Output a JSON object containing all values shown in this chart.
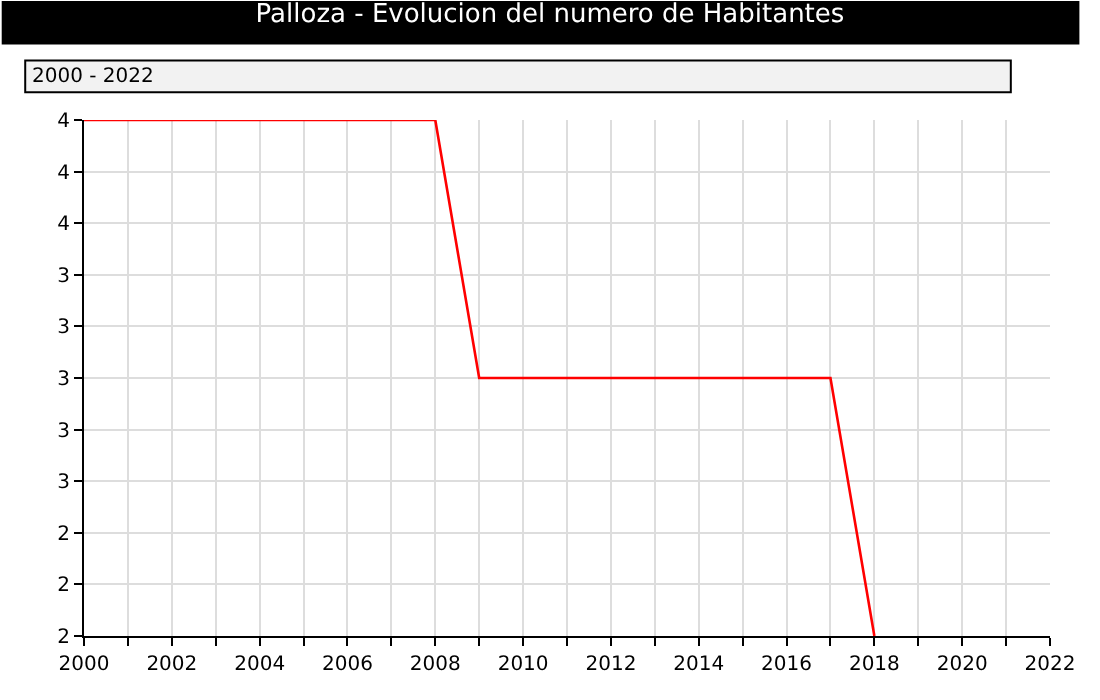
{
  "chart_data": {
    "type": "line",
    "title": "Palloza - Evolucion del numero de Habitantes",
    "annotations": [
      "2000 - 2022"
    ],
    "x": [
      2000,
      2001,
      2002,
      2003,
      2004,
      2005,
      2006,
      2007,
      2008,
      2009,
      2010,
      2011,
      2012,
      2013,
      2014,
      2015,
      2016,
      2017,
      2018
    ],
    "series": [
      {
        "color": "#ff0000",
        "values": [
          4,
          4,
          4,
          4,
          4,
          4,
          4,
          4,
          4,
          3,
          3,
          3,
          3,
          3,
          3,
          3,
          3,
          3,
          2
        ]
      }
    ],
    "xlim": [
      2000,
      2022
    ],
    "xticks": [
      2000,
      {
        "value": 2001,
        "label": null
      },
      2002,
      {
        "value": 2003,
        "label": null
      },
      2004,
      {
        "value": 2005,
        "label": null
      },
      2006,
      {
        "value": 2007,
        "label": null
      },
      2008,
      {
        "value": 2009,
        "label": null
      },
      2010,
      {
        "value": 2011,
        "label": null
      },
      2012,
      {
        "value": 2013,
        "label": null
      },
      2014,
      {
        "value": 2015,
        "label": null
      },
      2016,
      {
        "value": 2017,
        "label": null
      },
      2018,
      {
        "value": 2019,
        "label": null
      },
      2020,
      {
        "value": 2021,
        "label": null
      },
      2022
    ],
    "ylim": [
      2,
      4
    ],
    "yticks": [
      {
        "value": 2.0,
        "label": "2"
      },
      {
        "value": 2.2,
        "label": "2"
      },
      {
        "value": 2.4,
        "label": "2"
      },
      {
        "value": 2.6,
        "label": "3"
      },
      {
        "value": 2.8,
        "label": "3"
      },
      {
        "value": 3.0,
        "label": "3"
      },
      {
        "value": 3.2,
        "label": "3"
      },
      {
        "value": 3.4,
        "label": "3"
      },
      {
        "value": 3.6,
        "label": "4"
      },
      {
        "value": 3.8,
        "label": "4"
      },
      {
        "value": 4.0,
        "label": "4"
      }
    ],
    "grid": true,
    "marker": "none",
    "line_style": "solid"
  }
}
